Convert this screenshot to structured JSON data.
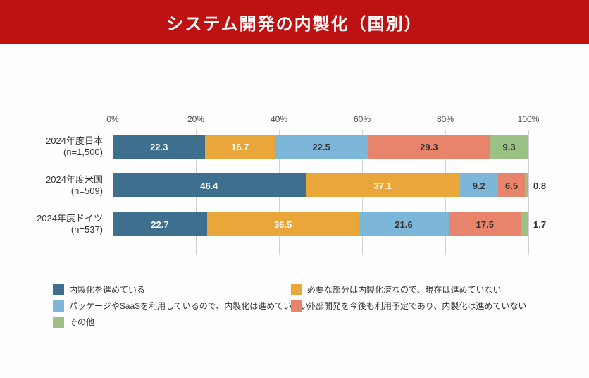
{
  "title": "システム開発の内製化（国別）",
  "colors": {
    "banner": "#BE1112",
    "grid": "#D2D2D2",
    "axis_text": "#4A4A4A",
    "value_text_dark": "#333333",
    "value_text_light": "#FFFFFF"
  },
  "chart_data": {
    "type": "bar",
    "orientation": "horizontal",
    "stacked": true,
    "unit": "%",
    "xlim": [
      0,
      100
    ],
    "x_ticks": [
      "0%",
      "20%",
      "40%",
      "60%",
      "80%",
      "100%"
    ],
    "grid": true,
    "legend_position": "bottom",
    "categories": [
      "2024年度日本",
      "2024年度米国",
      "2024年度ドイツ"
    ],
    "category_sublabels": [
      "(n=1,500)",
      "(n=509)",
      "(n=537)"
    ],
    "series": [
      {
        "name": "内製化を進めている",
        "color": "#3F6F8E",
        "label_color": "#FFFFFF",
        "values": [
          22.3,
          46.4,
          22.7
        ]
      },
      {
        "name": "必要な部分は内製化済なので、現在は進めていない",
        "color": "#E9A73B",
        "label_color": "#FFFFFF",
        "values": [
          16.7,
          37.1,
          36.5
        ]
      },
      {
        "name": "パッケージやSaaSを利用しているので、内製化は進めていない",
        "color": "#7CB6D9",
        "label_color": "#333333",
        "values": [
          22.5,
          9.2,
          21.6
        ]
      },
      {
        "name": "外部開発を今後も利用予定であり、内製化は進めていない",
        "color": "#E9846C",
        "label_color": "#333333",
        "values": [
          29.3,
          6.5,
          17.5
        ]
      },
      {
        "name": "その他",
        "color": "#9CC184",
        "label_color": "#333333",
        "values": [
          9.3,
          0.8,
          1.7
        ]
      }
    ]
  }
}
